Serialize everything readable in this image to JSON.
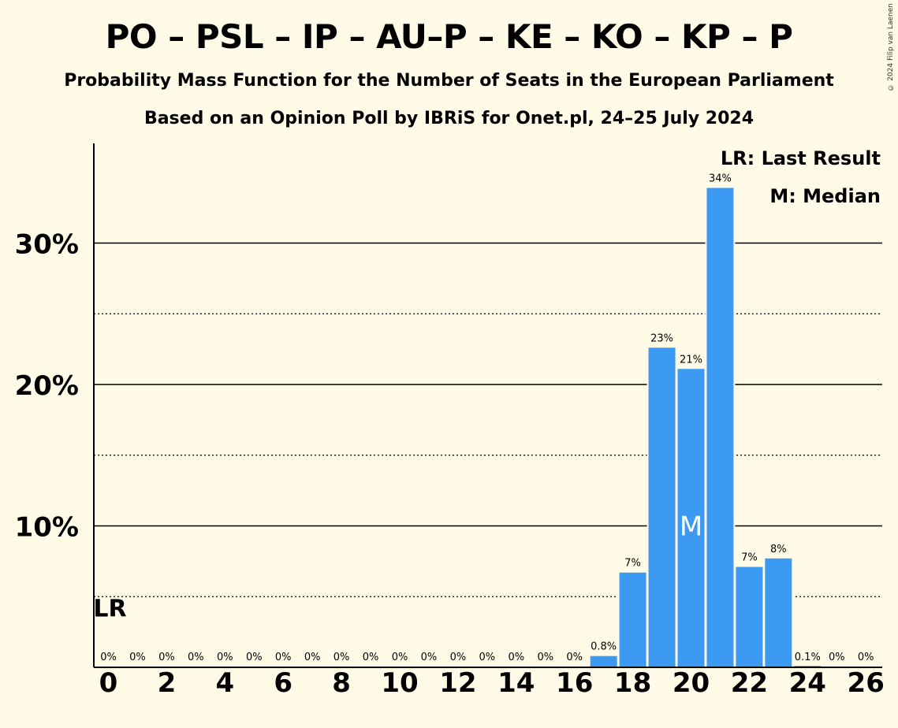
{
  "header": {
    "title": "PO – PSL – IP – AU–P – KE – KO – KP – P",
    "subtitle": "Probability Mass Function for the Number of Seats in the European Parliament",
    "subtitle2": "Based on an Opinion Poll by IBRiS for Onet.pl, 24–25 July 2024",
    "copyright": "© 2024 Filip van Laenen"
  },
  "legend": {
    "last_result": "LR: Last Result",
    "median": "M: Median"
  },
  "colors": {
    "bar": "#3d9af2",
    "background": "#fffbe6",
    "text": "#000000"
  },
  "chart_data": {
    "type": "bar",
    "title": "PO – PSL – IP – AU–P – KE – KO – KP – P",
    "xlabel": "",
    "ylabel": "",
    "ylim": [
      0,
      37
    ],
    "yticks": [
      10,
      20,
      30
    ],
    "ytick_labels": [
      "10%",
      "20%",
      "30%"
    ],
    "dotted_lines": [
      5,
      15,
      25
    ],
    "categories": [
      0,
      1,
      2,
      3,
      4,
      5,
      6,
      7,
      8,
      9,
      10,
      11,
      12,
      13,
      14,
      15,
      16,
      17,
      18,
      19,
      20,
      21,
      22,
      23,
      24,
      25,
      26
    ],
    "xtick_labels": [
      "0",
      "2",
      "4",
      "6",
      "8",
      "10",
      "12",
      "14",
      "16",
      "18",
      "20",
      "22",
      "24",
      "26"
    ],
    "values": [
      0,
      0,
      0,
      0,
      0,
      0,
      0,
      0,
      0,
      0,
      0,
      0,
      0,
      0,
      0,
      0,
      0,
      0.8,
      6.7,
      22.6,
      21.1,
      33.9,
      7.1,
      7.7,
      0.1,
      0,
      0
    ],
    "labels": [
      "0%",
      "0%",
      "0%",
      "0%",
      "0%",
      "0%",
      "0%",
      "0%",
      "0%",
      "0%",
      "0%",
      "0%",
      "0%",
      "0%",
      "0%",
      "0%",
      "0%",
      "0.8%",
      "7%",
      "23%",
      "21%",
      "34%",
      "7%",
      "8%",
      "0.1%",
      "0%",
      "0%"
    ],
    "last_result": {
      "seat": 0,
      "label": "LR",
      "level": 5
    },
    "median": {
      "seat": 20,
      "label": "M"
    }
  }
}
